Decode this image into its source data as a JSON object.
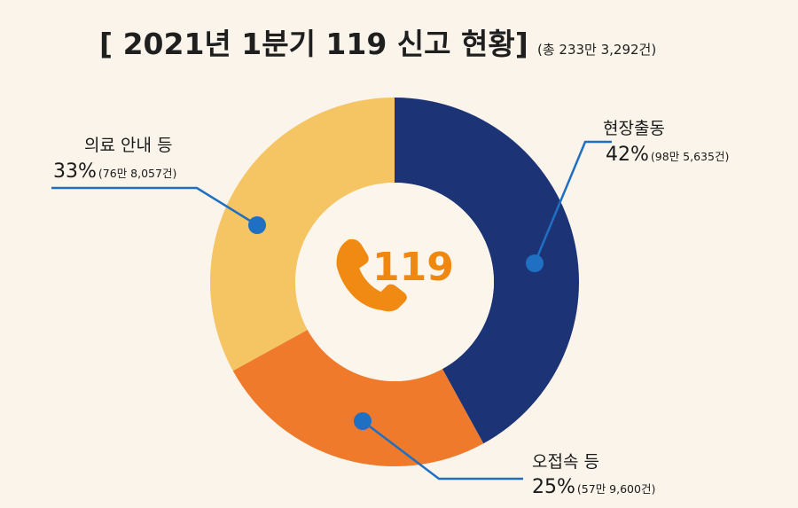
{
  "title": "[ 2021년 1분기 119 신고 현황]",
  "subtitle": "(총 233만 3,292건)",
  "center_label": "119",
  "colors": {
    "background": "#faf4ea",
    "inner_circle": "#fbf5ec",
    "phone_icon": "#f08a12",
    "leader_line": "#1f6fc3",
    "text": "#1a1a1a"
  },
  "chart_data": {
    "type": "pie",
    "title": "[ 2021년 1분기 119 신고 현황]",
    "subtitle": "(총 233만 3,292건)",
    "slices": [
      {
        "name": "현장출동",
        "value": 42,
        "percent_label": "42%",
        "count_label": "(98만 5,635건)",
        "color": "#1c3476"
      },
      {
        "name": "오접속 등",
        "value": 25,
        "percent_label": "25%",
        "count_label": "(57만 9,600건)",
        "color": "#ef7a2b"
      },
      {
        "name": "의료 안내 등",
        "value": 33,
        "percent_label": "33%",
        "count_label": "(76만 8,057건)",
        "color": "#f5c463"
      }
    ]
  }
}
